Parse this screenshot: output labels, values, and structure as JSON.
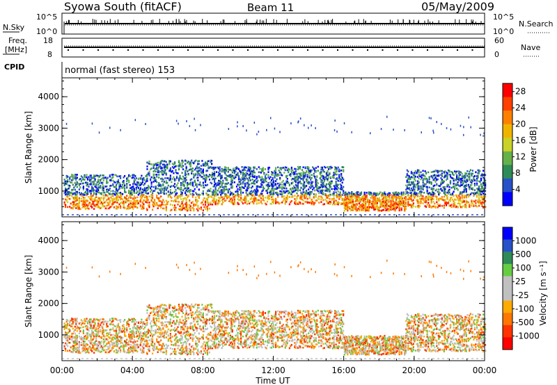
{
  "header": {
    "station": "Syowa South (fitACF)",
    "beam": "Beam 11",
    "date": "05/May/2009"
  },
  "top_panels": {
    "nsky_label": "N.Sky",
    "nsky_ticks": [
      "10^5",
      "10^0"
    ],
    "nsearch_label": "N.Search",
    "nsearch_ticks": [
      "10^5",
      "10^0"
    ],
    "freq_label_line1": "Freq.",
    "freq_label_line2": "[MHz]",
    "freq_ticks": [
      "18",
      "8"
    ],
    "nave_label": "Nave",
    "nave_ticks": [
      "60",
      "0"
    ],
    "cpid_label": "CPID",
    "cpid_text": "normal (fast stereo) 153"
  },
  "colors": {
    "power_scale": [
      "#0000ff",
      "#2850c8",
      "#2e8b57",
      "#66b04a",
      "#c8d228",
      "#f0b400",
      "#ff8000",
      "#ff4000",
      "#ff0000"
    ],
    "velocity_scale": [
      "#0000ff",
      "#2850c8",
      "#2e8b57",
      "#66cc44",
      "#c0c0c0",
      "#c0c0c0",
      "#ffaa00",
      "#ff7700",
      "#ff3300",
      "#ff0000"
    ]
  },
  "chart_data": [
    {
      "type": "heatmap",
      "panel": "power",
      "xlabel": "Time UT",
      "ylabel": "Slant Range [km]",
      "x_ticks": [
        "00:00",
        "04:00",
        "08:00",
        "12:00",
        "16:00",
        "20:00",
        "00:00"
      ],
      "xlim_hours": [
        0,
        24
      ],
      "y_ticks": [
        "1000",
        "2000",
        "3000",
        "4000"
      ],
      "ylim": [
        180,
        4600
      ],
      "colorbar_label": "Power [dB]",
      "colorbar_ticks": [
        "4",
        "8",
        "12",
        "16",
        "20",
        "24",
        "28"
      ],
      "colorbar_range": [
        0,
        30
      ],
      "echo_bands": [
        {
          "t": [
            0.1,
            4.8
          ],
          "r_center": 1000,
          "r_halfwidth": 550
        },
        {
          "t": [
            4.8,
            8.5
          ],
          "r_center": 1200,
          "r_halfwidth": 800
        },
        {
          "t": [
            8.5,
            16.0
          ],
          "r_center": 1200,
          "r_halfwidth": 600
        },
        {
          "t": [
            16.0,
            19.5
          ],
          "r_center": 700,
          "r_halfwidth": 300
        },
        {
          "t": [
            19.5,
            24.0
          ],
          "r_center": 1100,
          "r_halfwidth": 600
        }
      ]
    },
    {
      "type": "heatmap",
      "panel": "velocity",
      "xlabel": "Time UT",
      "ylabel": "Slant Range [km]",
      "x_ticks": [
        "00:00",
        "04:00",
        "08:00",
        "12:00",
        "16:00",
        "20:00",
        "00:00"
      ],
      "xlim_hours": [
        0,
        24
      ],
      "y_ticks": [
        "1000",
        "2000",
        "3000",
        "4000"
      ],
      "ylim": [
        180,
        4600
      ],
      "colorbar_label": "Velocity [m s⁻¹]",
      "colorbar_ticks": [
        "1000",
        "500",
        "100",
        "25",
        "-25",
        "-100",
        "-500",
        "-1000"
      ],
      "echo_bands": [
        {
          "t": [
            0.1,
            4.8
          ],
          "r_center": 1000,
          "r_halfwidth": 550
        },
        {
          "t": [
            4.8,
            8.5
          ],
          "r_center": 1200,
          "r_halfwidth": 800
        },
        {
          "t": [
            8.5,
            16.0
          ],
          "r_center": 1200,
          "r_halfwidth": 600
        },
        {
          "t": [
            16.0,
            19.5
          ],
          "r_center": 700,
          "r_halfwidth": 300
        },
        {
          "t": [
            19.5,
            24.0
          ],
          "r_center": 1100,
          "r_halfwidth": 600
        }
      ]
    }
  ]
}
